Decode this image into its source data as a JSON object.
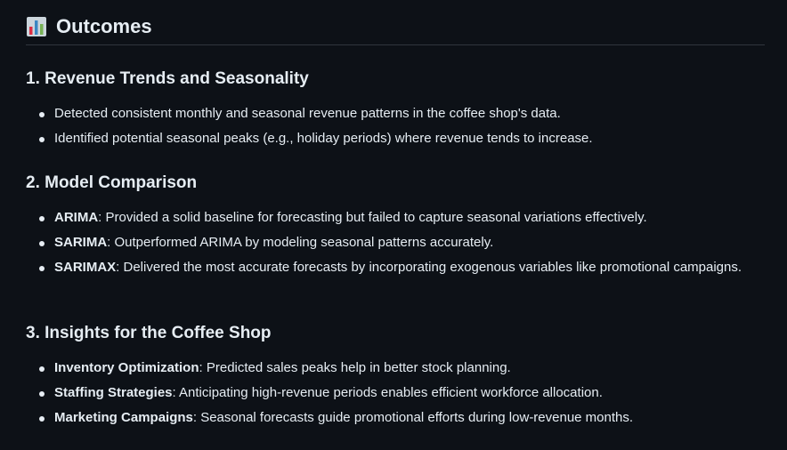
{
  "heading": {
    "icon": "bar-chart-icon",
    "title": "Outcomes"
  },
  "sections": [
    {
      "title": "1. Revenue Trends and Seasonality",
      "items": [
        {
          "term": "",
          "text": "Detected consistent monthly and seasonal revenue patterns in the coffee shop's data."
        },
        {
          "term": "",
          "text": "Identified potential seasonal peaks (e.g., holiday periods) where revenue tends to increase."
        }
      ]
    },
    {
      "title": "2. Model Comparison",
      "items": [
        {
          "term": "ARIMA",
          "text": ": Provided a solid baseline for forecasting but failed to capture seasonal variations effectively."
        },
        {
          "term": "SARIMA",
          "text": ": Outperformed ARIMA by modeling seasonal patterns accurately."
        },
        {
          "term": "SARIMAX",
          "text": ": Delivered the most accurate forecasts by incorporating exogenous variables like promotional campaigns."
        }
      ]
    },
    {
      "title": "3. Insights for the Coffee Shop",
      "items": [
        {
          "term": "Inventory Optimization",
          "text": ": Predicted sales peaks help in better stock planning."
        },
        {
          "term": "Staffing Strategies",
          "text": ": Anticipating high-revenue periods enables efficient workforce allocation."
        },
        {
          "term": "Marketing Campaigns",
          "text": ": Seasonal forecasts guide promotional efforts during low-revenue months."
        }
      ]
    }
  ]
}
